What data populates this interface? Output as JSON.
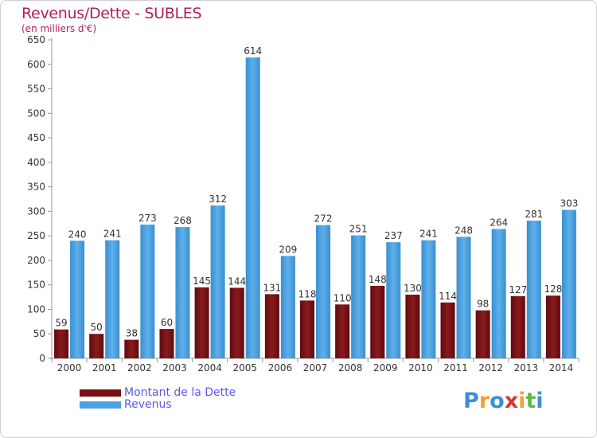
{
  "title": "Revenus/Dette - SUBLES",
  "subtitle": "(en milliers d'€)",
  "logo": {
    "letters": [
      "P",
      "r",
      "o",
      "x",
      "i",
      "t",
      "i"
    ],
    "colors": [
      "#3a8fd8",
      "#f2a230",
      "#3a8fd8",
      "#d9362b",
      "#f2a230",
      "#62b84a",
      "#3a8fd8"
    ]
  },
  "chart_data": {
    "type": "bar",
    "categories": [
      "2000",
      "2001",
      "2002",
      "2003",
      "2004",
      "2005",
      "2006",
      "2007",
      "2008",
      "2009",
      "2010",
      "2011",
      "2012",
      "2013",
      "2014"
    ],
    "series": [
      {
        "name": "Montant de la Dette",
        "color": "#7a0f12",
        "values": [
          59,
          50,
          38,
          60,
          145,
          144,
          131,
          118,
          110,
          148,
          130,
          114,
          98,
          127,
          128
        ]
      },
      {
        "name": "Revenus",
        "color": "#4aa3e2",
        "values": [
          240,
          241,
          273,
          268,
          312,
          614,
          209,
          272,
          251,
          237,
          241,
          248,
          264,
          281,
          303
        ]
      }
    ],
    "ylim": [
      0,
      650
    ],
    "yticks": [
      0,
      50,
      100,
      150,
      200,
      250,
      300,
      350,
      400,
      450,
      500,
      550,
      600,
      650
    ],
    "grid": false,
    "legend_position": "bottom-left"
  }
}
